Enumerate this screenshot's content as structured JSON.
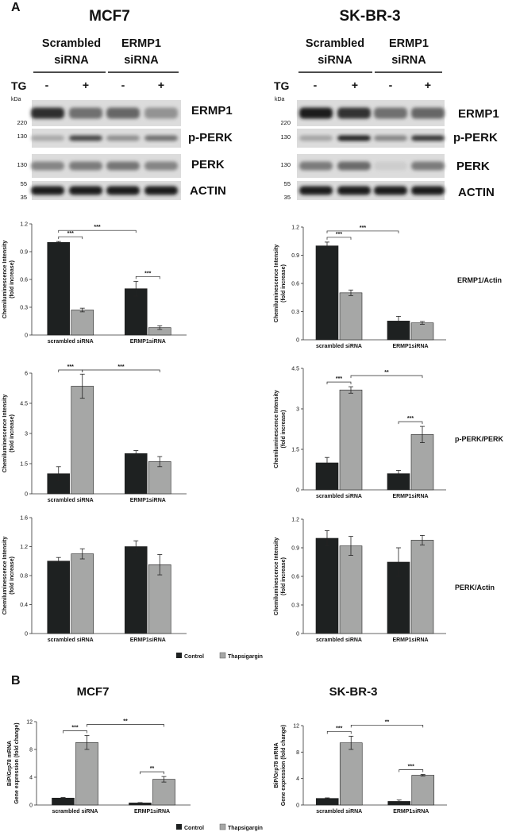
{
  "panel_a": {
    "letter": "A",
    "columns": [
      {
        "cell_line": "MCF7",
        "group_labels": [
          [
            "Scrambled",
            "siRNA"
          ],
          [
            "ERMP1",
            "siRNA"
          ]
        ],
        "tg_label": "TG",
        "treatment_signs": [
          "-",
          "+",
          "-",
          "+"
        ],
        "kda_label": "kDa",
        "blot_rows": [
          {
            "label": "ERMP1",
            "marker": "220",
            "intensities": [
              0.88,
              0.55,
              0.6,
              0.38
            ]
          },
          {
            "label": "p-PERK",
            "marker": "130",
            "intensities": [
              0.28,
              0.75,
              0.4,
              0.55
            ]
          },
          {
            "label": "PERK",
            "marker": "130",
            "intensities": [
              0.45,
              0.5,
              0.52,
              0.45
            ]
          },
          {
            "label": "ACTIN",
            "markers": [
              "55",
              "35"
            ],
            "intensities": [
              0.95,
              0.95,
              0.95,
              0.95
            ]
          }
        ]
      },
      {
        "cell_line": "SK-BR-3",
        "group_labels": [
          [
            "Scrambled",
            "siRNA"
          ],
          [
            "ERMP1",
            "siRNA"
          ]
        ],
        "tg_label": "TG",
        "treatment_signs": [
          "-",
          "+",
          "-",
          "+"
        ],
        "kda_label": "kDa",
        "blot_rows": [
          {
            "label": "ERMP1",
            "marker": "220",
            "intensities": [
              0.95,
              0.85,
              0.55,
              0.6
            ]
          },
          {
            "label": "p-PERK",
            "marker": "130",
            "intensities": [
              0.3,
              0.92,
              0.45,
              0.82
            ]
          },
          {
            "label": "PERK",
            "marker": "130",
            "intensities": [
              0.5,
              0.58,
              0.1,
              0.5
            ]
          },
          {
            "label": "ACTIN",
            "markers": [
              "55",
              "35"
            ],
            "intensities": [
              0.95,
              0.95,
              0.95,
              0.95
            ]
          }
        ]
      }
    ],
    "row_ratio_labels": [
      "ERMP1/Actin",
      "p-PERK/PERK",
      "PERK/Actin"
    ],
    "legend": {
      "control": "Control",
      "treated": "Thapsigargin"
    }
  },
  "panel_b": {
    "letter": "B",
    "titles": [
      "MCF7",
      "SK-BR-3"
    ],
    "legend": {
      "control": "Control",
      "treated": "Thapsigargin"
    }
  },
  "colors": {
    "control": "#1e2121",
    "treated": "#a6a7a6",
    "axis": "#333333"
  },
  "chart_data": [
    {
      "type": "bar",
      "panel": "A",
      "cell_line": "MCF7",
      "measure": "ERMP1/Actin",
      "categories": [
        "scrambled siRNA",
        "ERMP1siRNA"
      ],
      "ylabel": "Chemiluminescence Intensity (fold increase)",
      "ylim": [
        0,
        1.2
      ],
      "yticks": [
        "0",
        "0.3",
        "0.6",
        "0.9",
        "1.2"
      ],
      "series": [
        {
          "name": "Control",
          "values": [
            1.0,
            0.5
          ],
          "errors": [
            0.01,
            0.08
          ]
        },
        {
          "name": "Thapsigargin",
          "values": [
            0.27,
            0.08
          ],
          "errors": [
            0.02,
            0.02
          ]
        }
      ],
      "significance": [
        {
          "from": [
            0,
            0
          ],
          "to": [
            0,
            1
          ],
          "label": "***"
        },
        {
          "from": [
            0,
            0
          ],
          "to": [
            1,
            0
          ],
          "label": "***"
        },
        {
          "from": [
            1,
            0
          ],
          "to": [
            1,
            1
          ],
          "label": "***"
        }
      ]
    },
    {
      "type": "bar",
      "panel": "A",
      "cell_line": "SK-BR-3",
      "measure": "ERMP1/Actin",
      "categories": [
        "scrambled siRNA",
        "ERMP1siRNA"
      ],
      "ylabel": "Chemiluminescence Intensity (fold increase)",
      "ylim": [
        0,
        1.2
      ],
      "yticks": [
        "0",
        "0.3",
        "0.6",
        "0.9",
        "1.2"
      ],
      "series": [
        {
          "name": "Control",
          "values": [
            1.0,
            0.2
          ],
          "errors": [
            0.04,
            0.05
          ]
        },
        {
          "name": "Thapsigargin",
          "values": [
            0.5,
            0.18
          ],
          "errors": [
            0.03,
            0.015
          ]
        }
      ],
      "significance": [
        {
          "from": [
            0,
            0
          ],
          "to": [
            0,
            1
          ],
          "label": "***"
        },
        {
          "from": [
            0,
            0
          ],
          "to": [
            1,
            0
          ],
          "label": "***"
        }
      ]
    },
    {
      "type": "bar",
      "panel": "A",
      "cell_line": "MCF7",
      "measure": "p-PERK/PERK",
      "categories": [
        "scrambled siRNA",
        "ERMP1siRNA"
      ],
      "ylabel": "Chemiluminescence Intensity (fold increase)",
      "ylim": [
        0,
        6
      ],
      "yticks": [
        "0",
        "1.5",
        "3",
        "4.5",
        "6"
      ],
      "series": [
        {
          "name": "Control",
          "values": [
            1.0,
            2.0
          ],
          "errors": [
            0.35,
            0.15
          ]
        },
        {
          "name": "Thapsigargin",
          "values": [
            5.35,
            1.6
          ],
          "errors": [
            0.6,
            0.25
          ]
        }
      ],
      "significance": [
        {
          "from": [
            0,
            0
          ],
          "to": [
            0,
            1
          ],
          "label": "***"
        },
        {
          "from": [
            0,
            1
          ],
          "to": [
            1,
            1
          ],
          "label": "***"
        }
      ]
    },
    {
      "type": "bar",
      "panel": "A",
      "cell_line": "SK-BR-3",
      "measure": "p-PERK/PERK",
      "categories": [
        "scrambled siRNA",
        "ERMP1siRNA"
      ],
      "ylabel": "Chemiluminescence Intensity (fold increase)",
      "ylim": [
        0,
        4.5
      ],
      "yticks": [
        "0",
        "1.5",
        "3",
        "4.5"
      ],
      "series": [
        {
          "name": "Control",
          "values": [
            1.0,
            0.6
          ],
          "errors": [
            0.2,
            0.12
          ]
        },
        {
          "name": "Thapsigargin",
          "values": [
            3.7,
            2.05
          ],
          "errors": [
            0.12,
            0.3
          ]
        }
      ],
      "significance": [
        {
          "from": [
            0,
            0
          ],
          "to": [
            0,
            1
          ],
          "label": "***"
        },
        {
          "from": [
            0,
            1
          ],
          "to": [
            1,
            1
          ],
          "label": "**"
        },
        {
          "from": [
            1,
            0
          ],
          "to": [
            1,
            1
          ],
          "label": "***"
        }
      ]
    },
    {
      "type": "bar",
      "panel": "A",
      "cell_line": "MCF7",
      "measure": "PERK/Actin",
      "categories": [
        "scrambled siRNA",
        "ERMP1siRNA"
      ],
      "ylabel": "Chemiluminescence Intensity (fold increase)",
      "ylim": [
        0,
        1.6
      ],
      "yticks": [
        "0",
        "0.4",
        "0.8",
        "1.2",
        "1.6"
      ],
      "series": [
        {
          "name": "Control",
          "values": [
            1.0,
            1.2
          ],
          "errors": [
            0.05,
            0.08
          ]
        },
        {
          "name": "Thapsigargin",
          "values": [
            1.1,
            0.95
          ],
          "errors": [
            0.07,
            0.14
          ]
        }
      ],
      "significance": []
    },
    {
      "type": "bar",
      "panel": "A",
      "cell_line": "SK-BR-3",
      "measure": "PERK/Actin",
      "categories": [
        "scrambled siRNA",
        "ERMP1siRNA"
      ],
      "ylabel": "Chemiluminescence Intensity (fold increase)",
      "ylim": [
        0,
        1.2
      ],
      "yticks": [
        "0",
        "0.3",
        "0.6",
        "0.9",
        "1.2"
      ],
      "series": [
        {
          "name": "Control",
          "values": [
            1.0,
            0.75
          ],
          "errors": [
            0.08,
            0.15
          ]
        },
        {
          "name": "Thapsigargin",
          "values": [
            0.92,
            0.98
          ],
          "errors": [
            0.1,
            0.05
          ]
        }
      ],
      "significance": []
    },
    {
      "type": "bar",
      "panel": "B",
      "cell_line": "MCF7",
      "measure": "BiP/Grp78 mRNA",
      "categories": [
        "scrambled siRNA",
        "ERMP1siRNA"
      ],
      "ylabel": "BiP/Grp78 mRNA Gene expression (fold change)",
      "ylim": [
        0,
        12
      ],
      "yticks": [
        "0",
        "4",
        "8",
        "12"
      ],
      "series": [
        {
          "name": "Control",
          "values": [
            1.0,
            0.3
          ],
          "errors": [
            0.08,
            0.05
          ]
        },
        {
          "name": "Thapsigargin",
          "values": [
            9.0,
            3.7
          ],
          "errors": [
            1.0,
            0.4
          ]
        }
      ],
      "significance": [
        {
          "from": [
            0,
            0
          ],
          "to": [
            0,
            1
          ],
          "label": "***"
        },
        {
          "from": [
            0,
            1
          ],
          "to": [
            1,
            1
          ],
          "label": "**"
        },
        {
          "from": [
            1,
            0
          ],
          "to": [
            1,
            1
          ],
          "label": "**"
        }
      ]
    },
    {
      "type": "bar",
      "panel": "B",
      "cell_line": "SK-BR-3",
      "measure": "BiP/Grp78 mRNA",
      "categories": [
        "scrambled siRNA",
        "ERMP1siRNA"
      ],
      "ylabel": "BiP/Grp78 mRNA Gene expression (fold change)",
      "ylim": [
        0,
        12
      ],
      "yticks": [
        "0",
        "4",
        "8",
        "12"
      ],
      "series": [
        {
          "name": "Control",
          "values": [
            1.0,
            0.55
          ],
          "errors": [
            0.08,
            0.2
          ]
        },
        {
          "name": "Thapsigargin",
          "values": [
            9.4,
            4.5
          ],
          "errors": [
            1.0,
            0.12
          ]
        }
      ],
      "significance": [
        {
          "from": [
            0,
            0
          ],
          "to": [
            0,
            1
          ],
          "label": "***"
        },
        {
          "from": [
            0,
            1
          ],
          "to": [
            1,
            1
          ],
          "label": "**"
        },
        {
          "from": [
            1,
            0
          ],
          "to": [
            1,
            1
          ],
          "label": "***"
        }
      ]
    }
  ]
}
